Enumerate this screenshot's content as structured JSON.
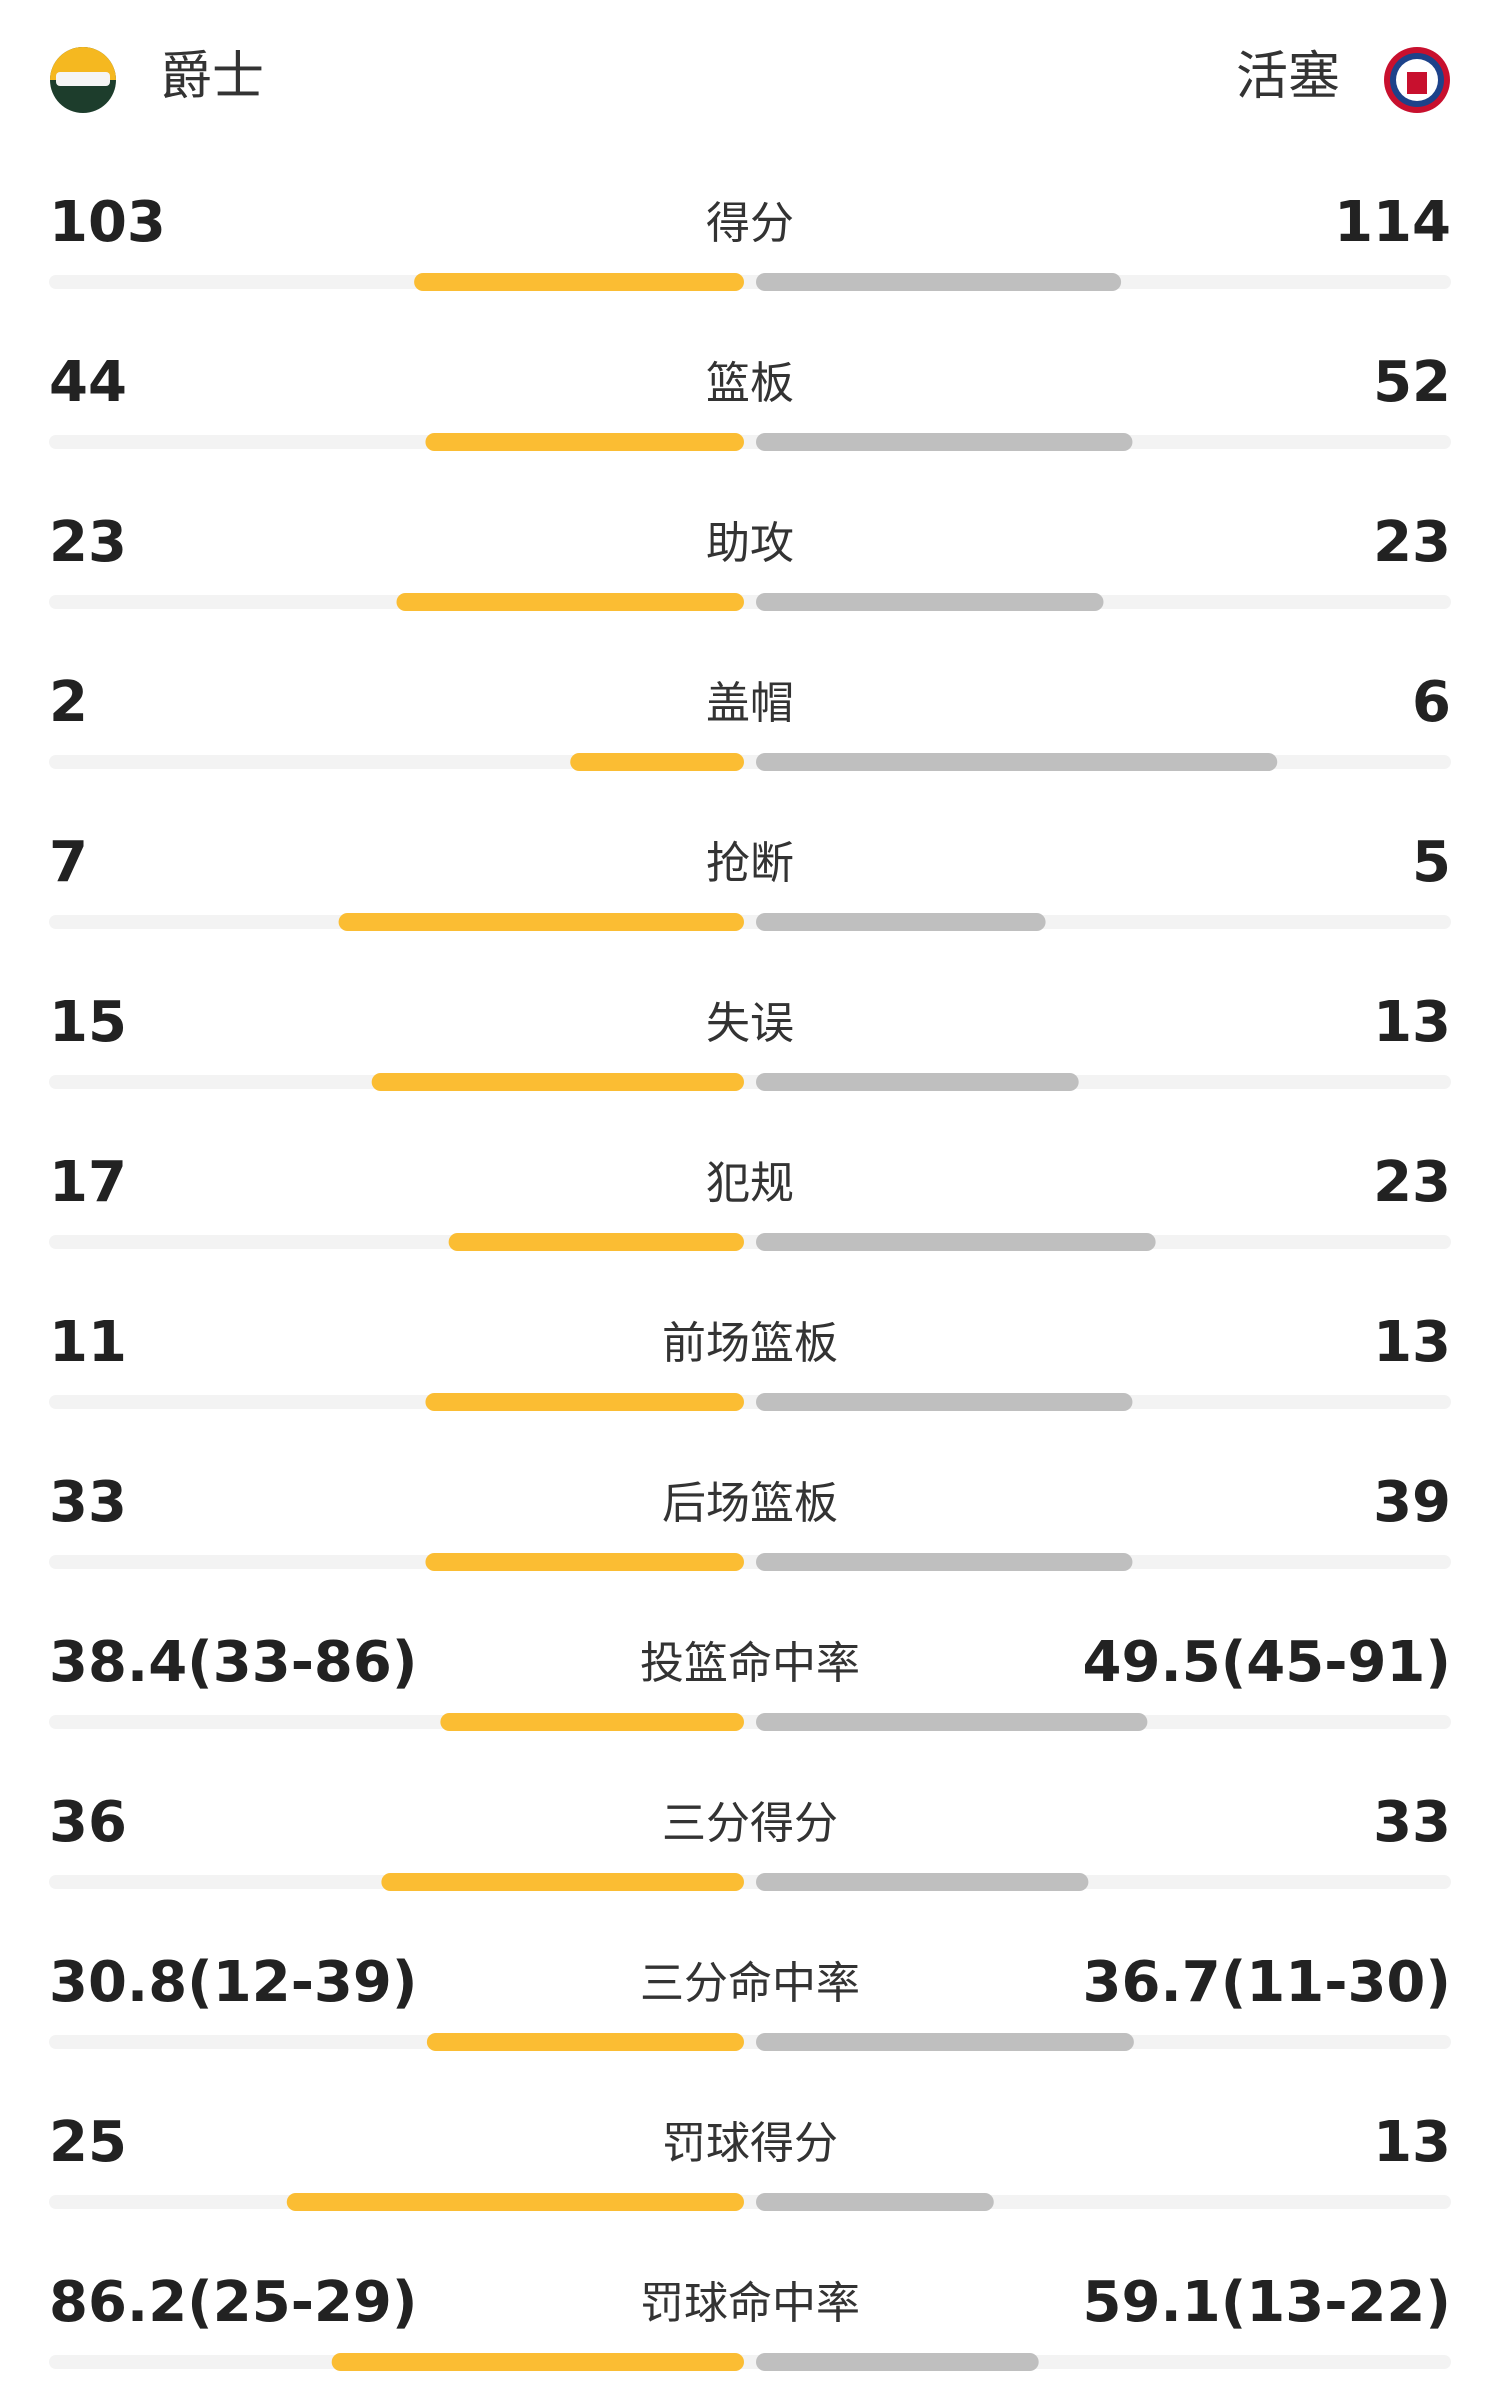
{
  "header": {
    "home_team": "爵士",
    "away_team": "活塞"
  },
  "colors": {
    "home": "#fbbd33",
    "away": "#bfbfbf",
    "track": "#f3f3f3"
  },
  "stats": [
    {
      "label": "得分",
      "home": 103,
      "away": 114
    },
    {
      "label": "篮板",
      "home": 44,
      "away": 52
    },
    {
      "label": "助攻",
      "home": 23,
      "away": 23
    },
    {
      "label": "盖帽",
      "home": 2,
      "away": 6
    },
    {
      "label": "抢断",
      "home": 7,
      "away": 5
    },
    {
      "label": "失误",
      "home": 15,
      "away": 13
    },
    {
      "label": "犯规",
      "home": 17,
      "away": 23
    },
    {
      "label": "前场篮板",
      "home": 11,
      "away": 13
    },
    {
      "label": "后场篮板",
      "home": 33,
      "away": 39
    },
    {
      "label": "投篮命中率",
      "home": {
        "value": 38.4,
        "label": "38.4(33-86)"
      },
      "away": {
        "value": 49.5,
        "label": "49.5(45-91)"
      }
    },
    {
      "label": "三分得分",
      "home": 36,
      "away": 33
    },
    {
      "label": "三分命中率",
      "home": {
        "value": 30.8,
        "label": "30.8(12-39)"
      },
      "away": {
        "value": 36.7,
        "label": "36.7(11-30)"
      }
    },
    {
      "label": "罚球得分",
      "home": 25,
      "away": 13
    },
    {
      "label": "罚球命中率",
      "home": {
        "value": 86.2,
        "label": "86.2(25-29)"
      },
      "away": {
        "value": 59.1,
        "label": "59.1(13-22)"
      }
    }
  ]
}
